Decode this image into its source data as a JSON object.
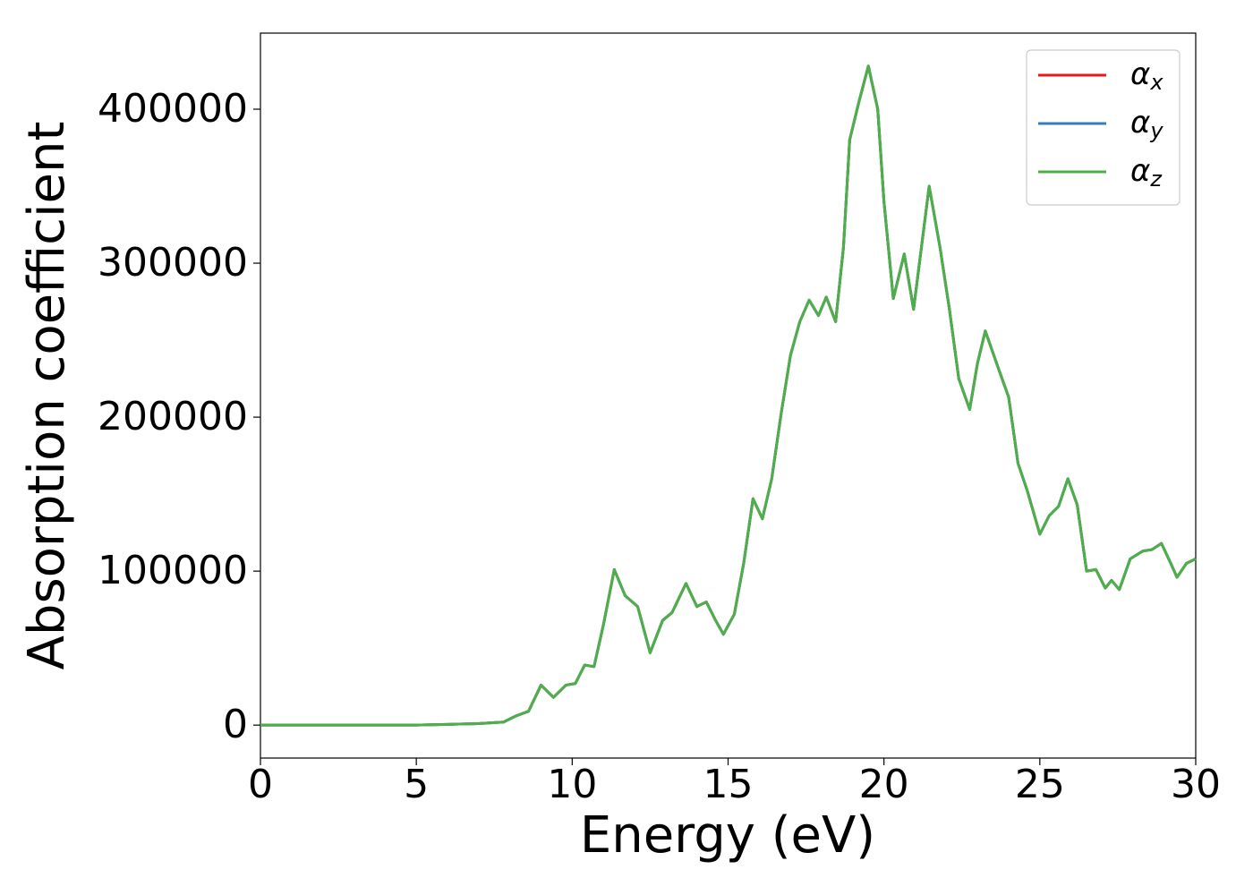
{
  "chart_data": {
    "type": "line",
    "x_label": "Energy (eV)",
    "y_label": "Absorption coefficient",
    "x": [
      0,
      5,
      6,
      7,
      7.8,
      8.2,
      8.6,
      9.0,
      9.4,
      9.8,
      10.1,
      10.4,
      10.7,
      11.0,
      11.35,
      11.7,
      12.1,
      12.5,
      12.9,
      13.2,
      13.65,
      14.0,
      14.3,
      14.6,
      14.85,
      15.2,
      15.5,
      15.8,
      16.1,
      16.4,
      16.7,
      17.0,
      17.3,
      17.6,
      17.9,
      18.15,
      18.45,
      18.7,
      18.9,
      19.2,
      19.5,
      19.8,
      20.0,
      20.3,
      20.65,
      20.95,
      21.2,
      21.45,
      21.8,
      22.1,
      22.4,
      22.75,
      23.0,
      23.25,
      23.7,
      24.0,
      24.3,
      24.6,
      25.0,
      25.3,
      25.6,
      25.9,
      26.2,
      26.5,
      26.8,
      27.1,
      27.3,
      27.55,
      27.9,
      28.3,
      28.6,
      28.9,
      29.2,
      29.4,
      29.7,
      30.0
    ],
    "series": [
      {
        "name": "αx",
        "color": "#e41a1c",
        "values": [
          0,
          0,
          500,
          1000,
          2000,
          6000,
          9000,
          26000,
          18000,
          26000,
          27000,
          39000,
          38000,
          65000,
          101000,
          84000,
          77000,
          47000,
          68000,
          73000,
          92000,
          77000,
          80000,
          68000,
          59000,
          72000,
          105000,
          147000,
          134000,
          160000,
          202000,
          240000,
          262000,
          276000,
          266000,
          278000,
          262000,
          310000,
          380000,
          405000,
          428000,
          400000,
          340000,
          277000,
          306000,
          270000,
          310000,
          350000,
          310000,
          270000,
          225000,
          205000,
          235000,
          256000,
          230000,
          213000,
          170000,
          152000,
          124000,
          136000,
          142000,
          160000,
          143000,
          100000,
          101000,
          89000,
          94000,
          88000,
          108000,
          113000,
          114000,
          118000,
          105000,
          96000,
          105000,
          108000
        ]
      },
      {
        "name": "αy",
        "color": "#377eb8",
        "values": [
          0,
          0,
          500,
          1000,
          2000,
          6000,
          9000,
          26000,
          18000,
          26000,
          27000,
          39000,
          38000,
          65000,
          101000,
          84000,
          77000,
          47000,
          68000,
          73000,
          92000,
          77000,
          80000,
          68000,
          59000,
          72000,
          105000,
          147000,
          134000,
          160000,
          202000,
          240000,
          262000,
          276000,
          266000,
          278000,
          262000,
          310000,
          380000,
          405000,
          428000,
          400000,
          340000,
          277000,
          306000,
          270000,
          310000,
          350000,
          310000,
          270000,
          225000,
          205000,
          235000,
          256000,
          230000,
          213000,
          170000,
          152000,
          124000,
          136000,
          142000,
          160000,
          143000,
          100000,
          101000,
          89000,
          94000,
          88000,
          108000,
          113000,
          114000,
          118000,
          105000,
          96000,
          105000,
          108000
        ]
      },
      {
        "name": "αz",
        "color": "#4daf4a",
        "values": [
          0,
          0,
          500,
          1000,
          2000,
          6000,
          9000,
          26000,
          18000,
          26000,
          27000,
          39000,
          38000,
          65000,
          101000,
          84000,
          77000,
          47000,
          68000,
          73000,
          92000,
          77000,
          80000,
          68000,
          59000,
          72000,
          105000,
          147000,
          134000,
          160000,
          202000,
          240000,
          262000,
          276000,
          266000,
          278000,
          262000,
          310000,
          380000,
          405000,
          428000,
          400000,
          340000,
          277000,
          306000,
          270000,
          310000,
          350000,
          310000,
          270000,
          225000,
          205000,
          235000,
          256000,
          230000,
          213000,
          170000,
          152000,
          124000,
          136000,
          142000,
          160000,
          143000,
          100000,
          101000,
          89000,
          94000,
          88000,
          108000,
          113000,
          114000,
          118000,
          105000,
          96000,
          105000,
          108000
        ]
      }
    ],
    "xlim": [
      0,
      30
    ],
    "xticks": [
      0,
      5,
      10,
      15,
      20,
      25,
      30
    ],
    "ylim": [
      -21400,
      449400
    ],
    "yticks": [
      0,
      100000,
      200000,
      300000,
      400000
    ],
    "legend": "upper right",
    "grid": false
  }
}
